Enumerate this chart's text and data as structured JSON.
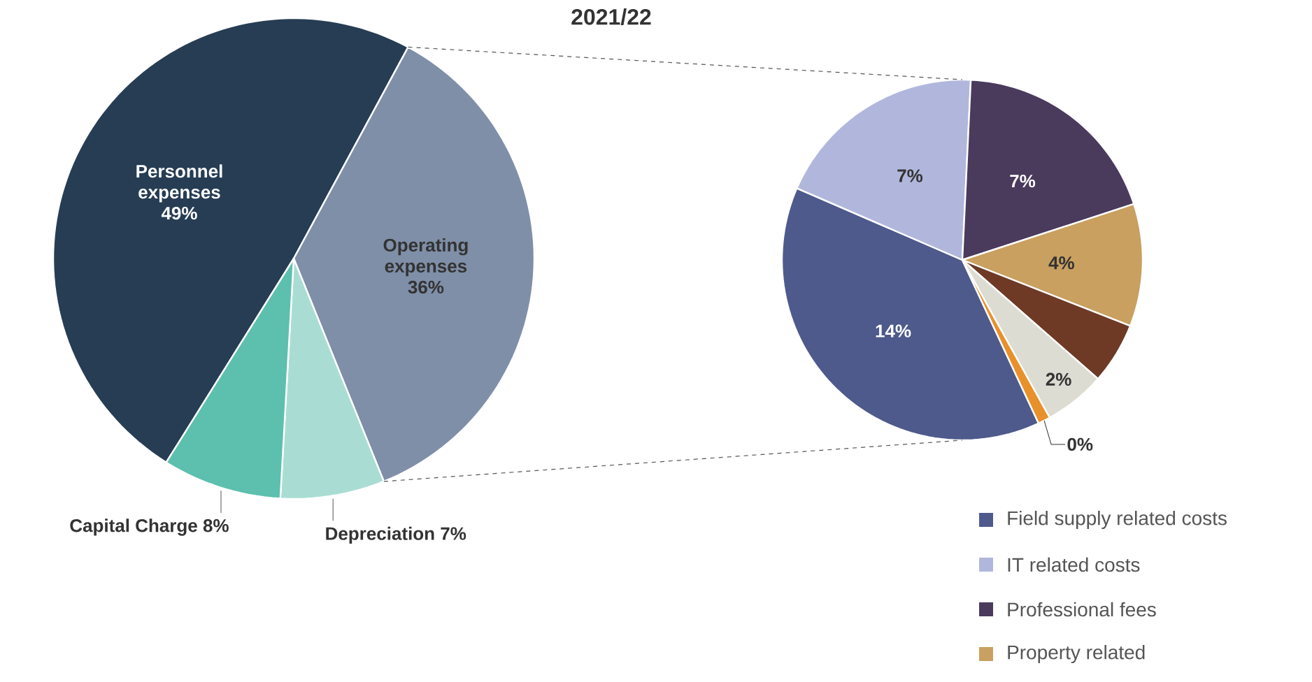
{
  "chart_data": [
    {
      "type": "pie",
      "title": "2021/22",
      "categories": [
        "Personnel expenses",
        "Operating expenses",
        "Depreciation",
        "Capital Charge"
      ],
      "values": [
        49,
        36,
        7,
        8
      ],
      "colors": [
        "#263d54",
        "#7f8fa8",
        "#a9ddd3",
        "#5dbfae"
      ],
      "value_labels": [
        "49%",
        "36%",
        "7%",
        "8%"
      ]
    },
    {
      "type": "pie",
      "categories": [
        "Field supply related costs",
        "IT related costs",
        "Professional fees",
        "Property related",
        null,
        null,
        null
      ],
      "values": [
        14,
        7,
        7,
        4,
        2,
        2,
        0.4
      ],
      "colors": [
        "#4e5a8c",
        "#b1b7dc",
        "#4a3a5c",
        "#c9a060",
        "#6e3a26",
        "#dcdcd2",
        "#e8902a"
      ],
      "value_labels": [
        "14%",
        "7%",
        "7%",
        "4%",
        null,
        "2%",
        "0%"
      ],
      "legend": "bottom right"
    }
  ]
}
